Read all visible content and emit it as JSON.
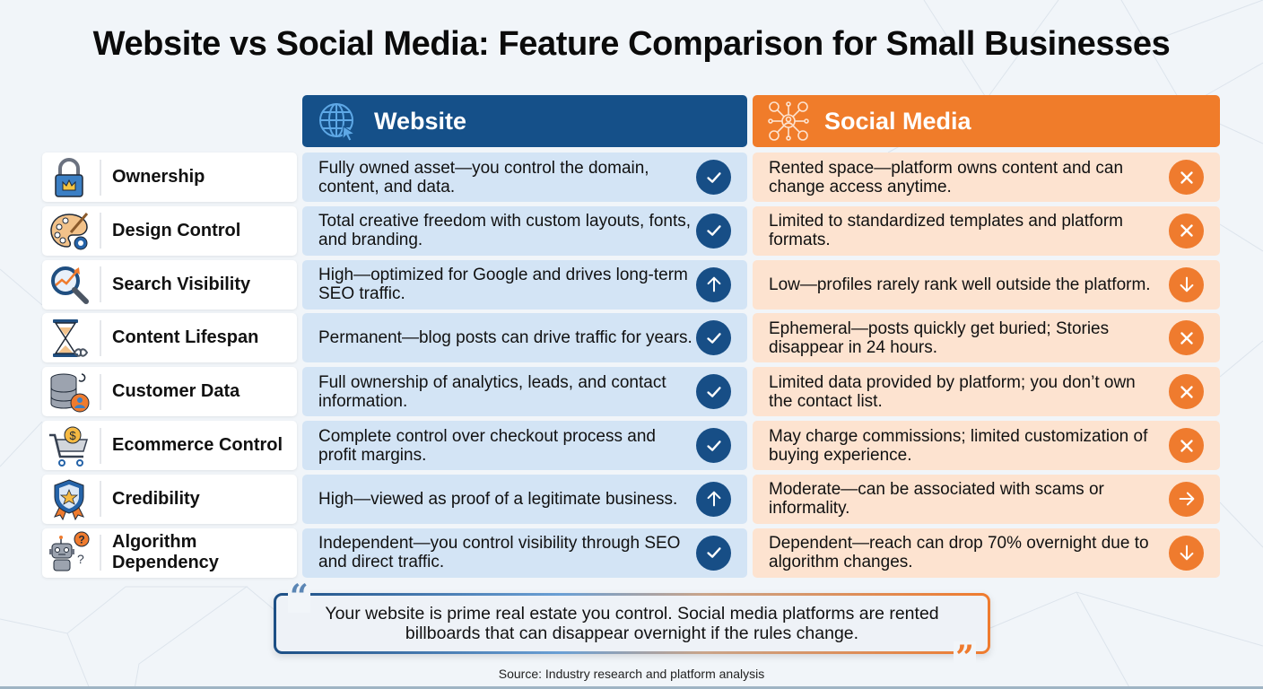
{
  "title": "Website vs Social Media: Feature Comparison for Small Businesses",
  "colors": {
    "website_header": "#155089",
    "social_header": "#f07c2a",
    "website_cell": "#d3e4f5",
    "social_cell": "#fde3d0",
    "website_badge": "#174e86",
    "social_badge": "#ef7b2e"
  },
  "columns": {
    "website": {
      "label": "Website",
      "icon": "globe-cursor-icon"
    },
    "social": {
      "label": "Social Media",
      "icon": "social-network-icon"
    }
  },
  "rows": [
    {
      "feature": "Ownership",
      "icon": "padlock-crown-icon",
      "website": "Fully owned asset—you control the domain, content, and data.",
      "website_badge": "check",
      "social": "Rented space—platform owns content and can change access anytime.",
      "social_badge": "x"
    },
    {
      "feature": "Design Control",
      "icon": "palette-gear-icon",
      "website": "Total creative freedom with custom layouts, fonts, and branding.",
      "website_badge": "check",
      "social": "Limited to standardized templates and platform formats.",
      "social_badge": "x"
    },
    {
      "feature": "Search Visibility",
      "icon": "magnifier-trend-icon",
      "website": "High—optimized for Google and drives long-term SEO traffic.",
      "website_badge": "arrow-up",
      "social": "Low—profiles rarely rank well outside the platform.",
      "social_badge": "arrow-down"
    },
    {
      "feature": "Content Lifespan",
      "icon": "hourglass-infinity-icon",
      "website": "Permanent—blog posts can drive traffic for years.",
      "website_badge": "check",
      "social": "Ephemeral—posts quickly get buried; Stories disappear in 24 hours.",
      "social_badge": "x"
    },
    {
      "feature": "Customer Data",
      "icon": "database-user-icon",
      "website": "Full ownership of analytics, leads, and contact information.",
      "website_badge": "check",
      "social": "Limited data provided by platform; you don’t own the contact list.",
      "social_badge": "x"
    },
    {
      "feature": "Ecommerce Control",
      "icon": "cart-dollar-icon",
      "website": "Complete control over checkout process and profit margins.",
      "website_badge": "check",
      "social": "May charge commissions; limited customization of buying experience.",
      "social_badge": "x"
    },
    {
      "feature": "Credibility",
      "icon": "shield-star-ribbon-icon",
      "website": "High—viewed as proof of a legitimate business.",
      "website_badge": "arrow-up",
      "social": "Moderate—can be associated with scams or informality.",
      "social_badge": "arrow-right"
    },
    {
      "feature": "Algorithm Dependency",
      "icon": "robot-question-icon",
      "website": "Independent—you control visibility through SEO and direct traffic.",
      "website_badge": "check",
      "social": "Dependent—reach can drop 70% overnight due to algorithm changes.",
      "social_badge": "arrow-down"
    }
  ],
  "quote": {
    "open_mark": "“",
    "close_mark": "”",
    "text": "Your website is prime real estate you control. Social media platforms are rented billboards that can disappear overnight if the rules change."
  },
  "source": "Source: Industry research and platform analysis"
}
